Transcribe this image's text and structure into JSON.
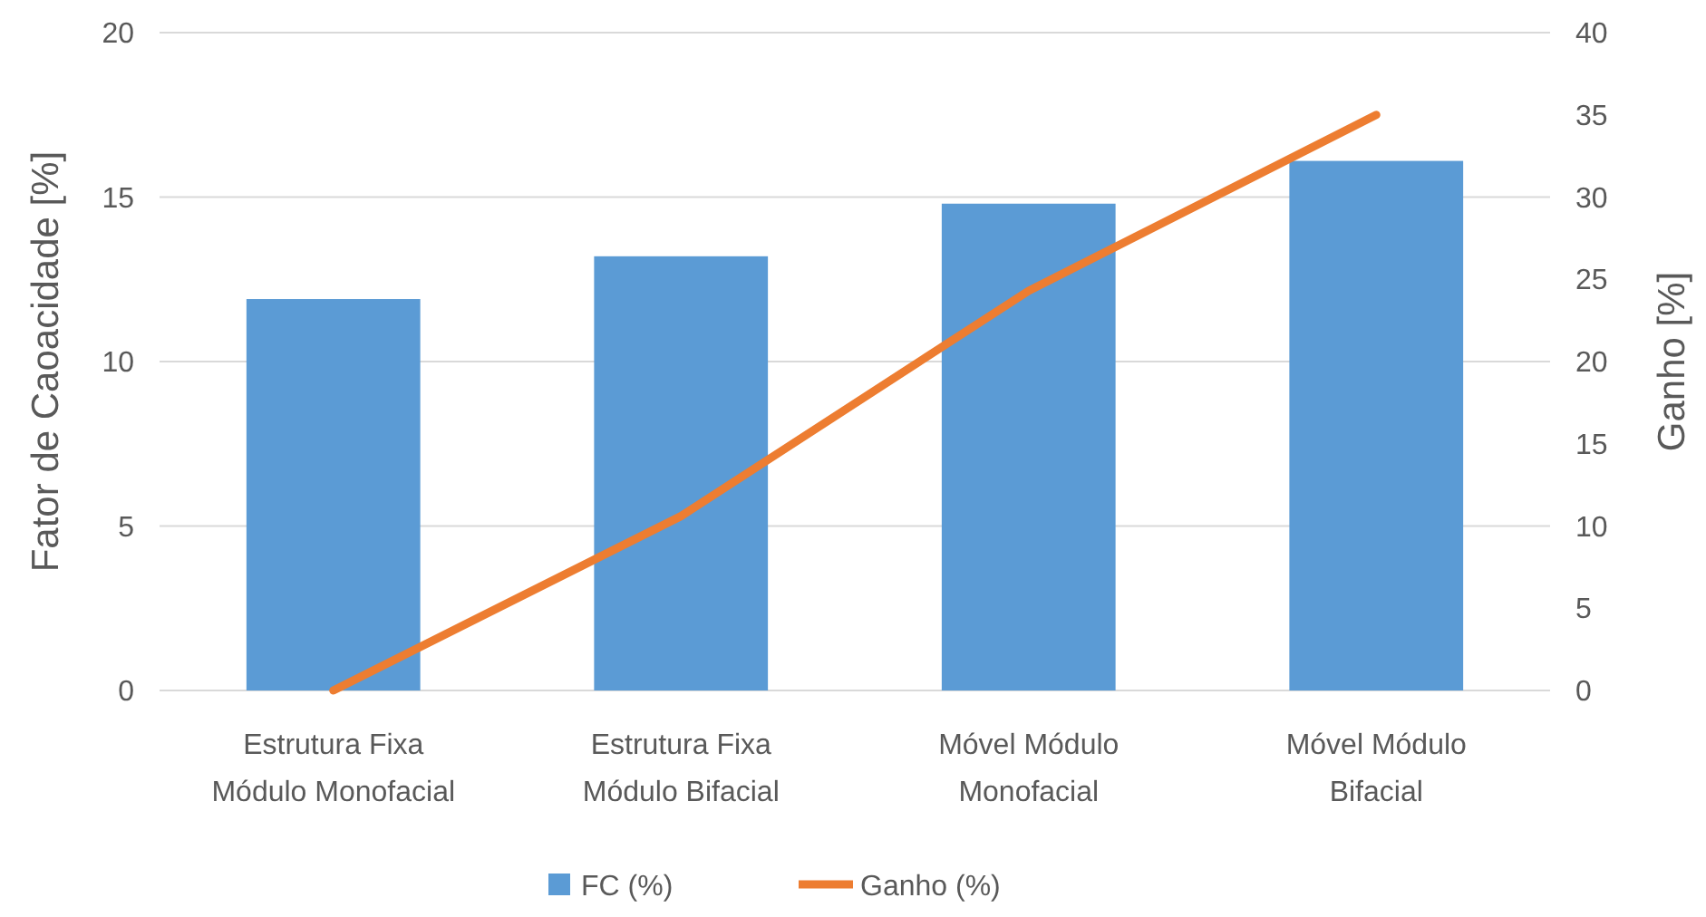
{
  "chart_data": {
    "type": "bar",
    "categories": [
      "Estrutura Fixa\nMódulo Monofacial",
      "Estrutura Fixa\nMódulo Bifacial",
      "Móvel Módulo\nMonofacial",
      "Móvel Módulo\nBifacial"
    ],
    "series": [
      {
        "name": "FC (%)",
        "color": "#5b9bd5",
        "values": [
          11.9,
          13.2,
          14.8,
          16.1
        ]
      },
      {
        "name": "Ganho (%)",
        "type": "line",
        "axis": "y2",
        "color": "#ed7d31",
        "values": [
          0,
          10.6,
          24.3,
          35.0
        ]
      }
    ],
    "ylabel": "Fator de Caoacidade [%]",
    "y2label": "Ganho [%]",
    "ylim": [
      0,
      20
    ],
    "yticks": [
      0,
      5,
      10,
      15,
      20
    ],
    "y2lim": [
      0,
      40
    ],
    "y2ticks": [
      0,
      5,
      10,
      15,
      20,
      25,
      30,
      35,
      40
    ],
    "grid": "y",
    "legend": "bottom",
    "marker": "none"
  }
}
